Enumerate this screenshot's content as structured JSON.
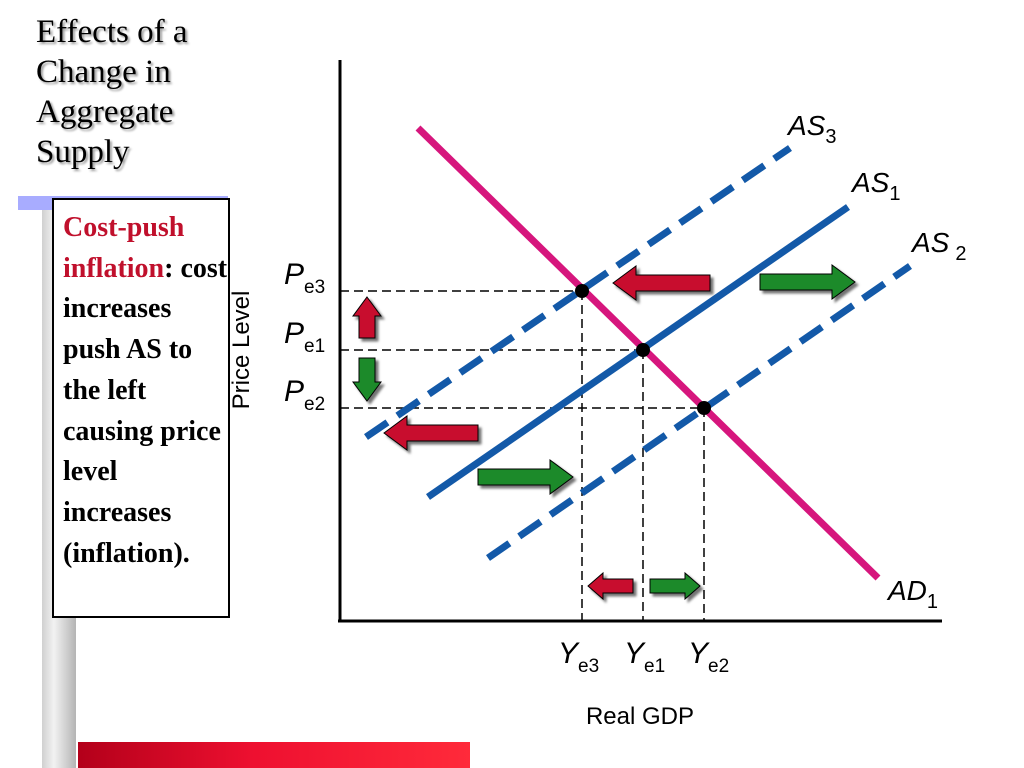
{
  "slide": {
    "title": "Effects of a\nChange in\nAggregate\nSupply",
    "textbox": {
      "term": "Cost-push inflation",
      "colon": ":",
      "body": " cost increases push AS to the left causing price level increases (inflation)."
    }
  },
  "diagram": {
    "y_axis_label": "Price Level",
    "x_axis_label": "Real GDP",
    "curves": {
      "as3": {
        "name": "AS",
        "sub": "3",
        "style": "dashed",
        "color": "#1359a8"
      },
      "as1": {
        "name": "AS",
        "sub": "1",
        "style": "solid",
        "color": "#1359a8"
      },
      "as2": {
        "name": "AS",
        "sub": "2",
        "style": "dashed",
        "color": "#1359a8"
      },
      "ad1": {
        "name": "AD",
        "sub": "1",
        "style": "solid",
        "color": "#d6167d"
      }
    },
    "price_levels": [
      {
        "name": "P",
        "sub": "e3"
      },
      {
        "name": "P",
        "sub": "e1"
      },
      {
        "name": "P",
        "sub": "e2"
      }
    ],
    "output_levels": [
      {
        "name": "Y",
        "sub": "e3"
      },
      {
        "name": "Y",
        "sub": "e1"
      },
      {
        "name": "Y",
        "sub": "e2"
      }
    ],
    "arrow_colors": {
      "left": "#c8102e",
      "right": "#1a8a2a"
    }
  }
}
